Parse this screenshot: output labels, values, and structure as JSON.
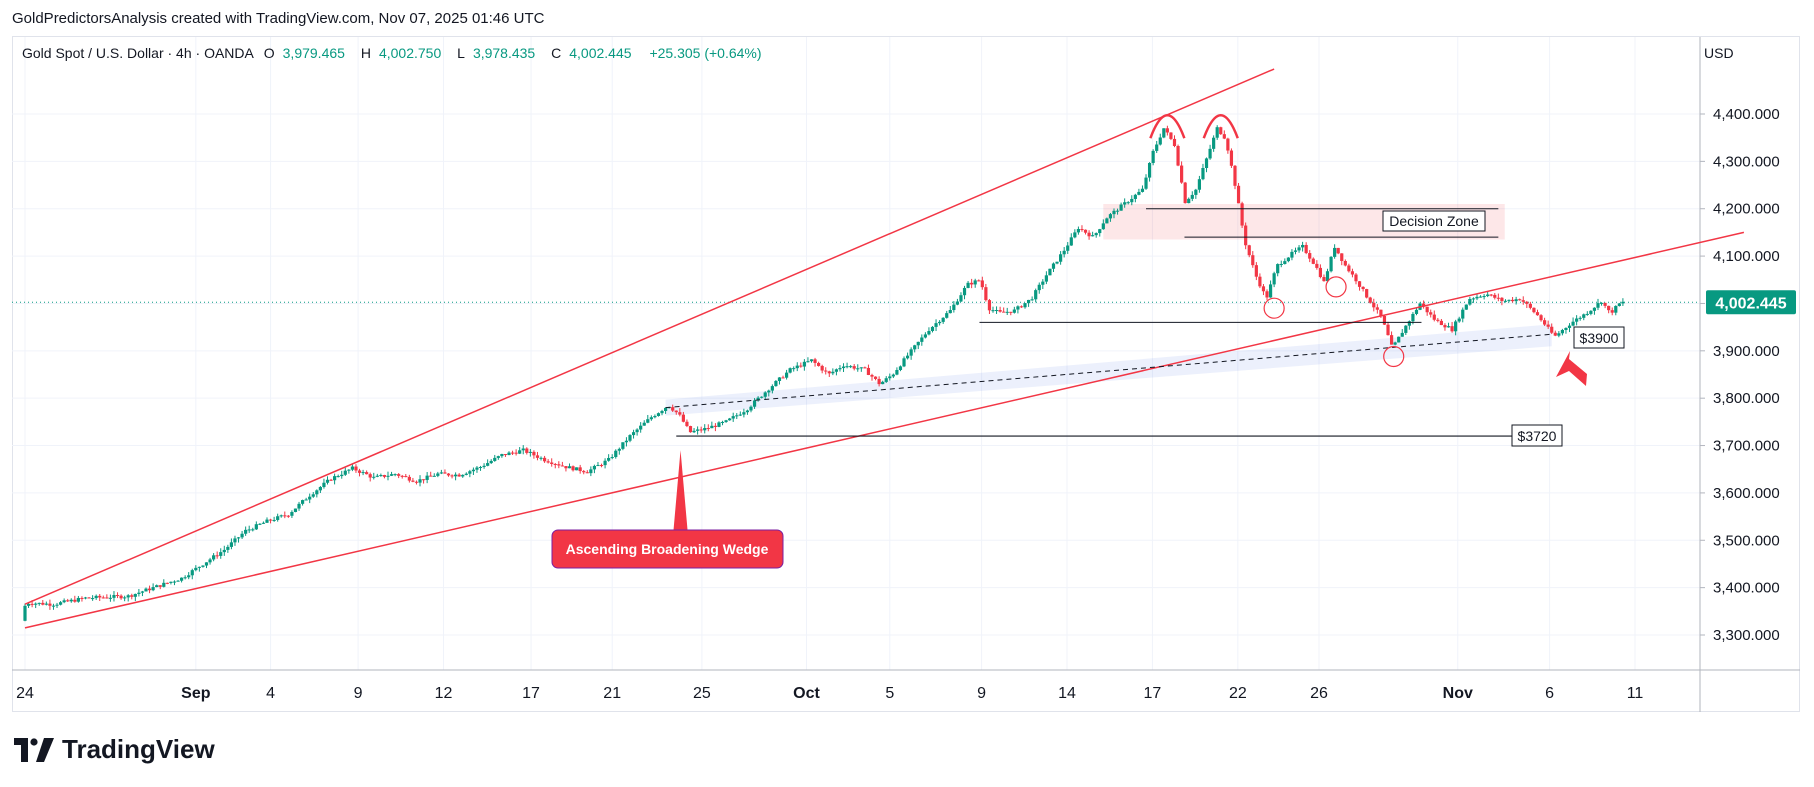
{
  "header": {
    "caption": "GoldPredictorsAnalysis created with TradingView.com, Nov 07, 2025 01:46 UTC"
  },
  "legend": {
    "symbol": "Gold Spot / U.S. Dollar · 4h · OANDA",
    "open_label": "O",
    "open": "3,979.465",
    "high_label": "H",
    "high": "4,002.750",
    "low_label": "L",
    "low": "3,978.435",
    "close_label": "C",
    "close": "4,002.445",
    "change": "+25.305 (+0.64%)"
  },
  "currency": "USD",
  "brand": {
    "name": "TradingView"
  },
  "colors": {
    "up": "#089981",
    "down": "#f23645",
    "accent": "#f23645",
    "grid": "#f0f3fa"
  },
  "chart_data": {
    "type": "candlestick",
    "symbol": "XAUUSD",
    "timeframe": "4h",
    "ylim": [
      3230,
      4520
    ],
    "y_ticks": [
      3300,
      3400,
      3500,
      3600,
      3700,
      3800,
      3900,
      4000,
      4100,
      4200,
      4300,
      4400
    ],
    "y_tick_labels": [
      "3,300.000",
      "3,400.000",
      "3,500.000",
      "3,600.000",
      "3,700.000",
      "3,800.000",
      "3,900.000",
      "4,000.000",
      "4,100.000",
      "4,200.000",
      "4,300.000",
      "4,400.000"
    ],
    "x_ticks": [
      {
        "label": "24",
        "bold": false,
        "day": 0
      },
      {
        "label": "Sep",
        "bold": true,
        "day": 8
      },
      {
        "label": "4",
        "bold": false,
        "day": 11.5
      },
      {
        "label": "9",
        "bold": false,
        "day": 15.6
      },
      {
        "label": "12",
        "bold": false,
        "day": 19.6
      },
      {
        "label": "17",
        "bold": false,
        "day": 23.7
      },
      {
        "label": "21",
        "bold": false,
        "day": 27.5
      },
      {
        "label": "25",
        "bold": false,
        "day": 31.7
      },
      {
        "label": "Oct",
        "bold": true,
        "day": 36.6
      },
      {
        "label": "5",
        "bold": false,
        "day": 40.5
      },
      {
        "label": "9",
        "bold": false,
        "day": 44.8
      },
      {
        "label": "14",
        "bold": false,
        "day": 48.8
      },
      {
        "label": "17",
        "bold": false,
        "day": 52.8
      },
      {
        "label": "22",
        "bold": false,
        "day": 56.8
      },
      {
        "label": "26",
        "bold": false,
        "day": 60.6
      },
      {
        "label": "Nov",
        "bold": true,
        "day": 67.1
      },
      {
        "label": "6",
        "bold": false,
        "day": 71.4
      },
      {
        "label": "11",
        "bold": false,
        "day": 75.4
      }
    ],
    "price_path": [
      [
        0,
        3330
      ],
      [
        0.2,
        3368
      ],
      [
        1.5,
        3365
      ],
      [
        3,
        3378
      ],
      [
        5,
        3382
      ],
      [
        6.5,
        3405
      ],
      [
        7.5,
        3420
      ],
      [
        8.5,
        3450
      ],
      [
        9.5,
        3480
      ],
      [
        10.5,
        3520
      ],
      [
        11.5,
        3540
      ],
      [
        12.5,
        3555
      ],
      [
        13.5,
        3595
      ],
      [
        14.5,
        3630
      ],
      [
        15.5,
        3652
      ],
      [
        16.5,
        3632
      ],
      [
        17.5,
        3640
      ],
      [
        18.5,
        3625
      ],
      [
        19.5,
        3640
      ],
      [
        20.5,
        3638
      ],
      [
        21.5,
        3655
      ],
      [
        22.5,
        3680
      ],
      [
        23.5,
        3690
      ],
      [
        24.5,
        3670
      ],
      [
        25.5,
        3655
      ],
      [
        26.5,
        3645
      ],
      [
        27.5,
        3670
      ],
      [
        28.5,
        3720
      ],
      [
        29.5,
        3760
      ],
      [
        30.3,
        3785
      ],
      [
        30.8,
        3765
      ],
      [
        31.3,
        3728
      ],
      [
        32,
        3735
      ],
      [
        33,
        3750
      ],
      [
        34,
        3778
      ],
      [
        35,
        3820
      ],
      [
        36,
        3860
      ],
      [
        37,
        3880
      ],
      [
        37.8,
        3850
      ],
      [
        38.5,
        3870
      ],
      [
        39.5,
        3860
      ],
      [
        40.2,
        3830
      ],
      [
        40.8,
        3850
      ],
      [
        41.5,
        3890
      ],
      [
        42.5,
        3945
      ],
      [
        43.5,
        3985
      ],
      [
        44.3,
        4040
      ],
      [
        44.9,
        4050
      ],
      [
        45.3,
        3990
      ],
      [
        45.8,
        3980
      ],
      [
        46.5,
        3985
      ],
      [
        47.3,
        4010
      ],
      [
        48,
        4060
      ],
      [
        48.8,
        4110
      ],
      [
        49.5,
        4160
      ],
      [
        50.2,
        4140
      ],
      [
        50.8,
        4180
      ],
      [
        51.5,
        4205
      ],
      [
        52.5,
        4240
      ],
      [
        53,
        4320
      ],
      [
        53.5,
        4370
      ],
      [
        54,
        4335
      ],
      [
        54.5,
        4215
      ],
      [
        55,
        4240
      ],
      [
        55.5,
        4305
      ],
      [
        56,
        4370
      ],
      [
        56.4,
        4348
      ],
      [
        56.8,
        4260
      ],
      [
        57.3,
        4130
      ],
      [
        57.8,
        4060
      ],
      [
        58.3,
        4010
      ],
      [
        58.8,
        4080
      ],
      [
        59.5,
        4105
      ],
      [
        60,
        4120
      ],
      [
        60.6,
        4080
      ],
      [
        61,
        4045
      ],
      [
        61.5,
        4120
      ],
      [
        62,
        4080
      ],
      [
        62.5,
        4050
      ],
      [
        63,
        4015
      ],
      [
        63.7,
        3970
      ],
      [
        64.2,
        3905
      ],
      [
        64.8,
        3950
      ],
      [
        65.5,
        4000
      ],
      [
        66.2,
        3965
      ],
      [
        67,
        3945
      ],
      [
        67.8,
        4010
      ],
      [
        68.6,
        4020
      ],
      [
        69.4,
        4005
      ],
      [
        70.2,
        4010
      ],
      [
        71,
        3975
      ],
      [
        71.8,
        3930
      ],
      [
        72.6,
        3960
      ],
      [
        73.3,
        3980
      ],
      [
        74,
        4005
      ],
      [
        74.4,
        3979
      ],
      [
        74.9,
        4002
      ]
    ],
    "current_price": 4002.445,
    "current_price_label": "4,002.445",
    "annotations": {
      "pattern_label": "Ascending Broadening Wedge",
      "decision_zone_label": "Decision Zone",
      "level_3900_label": "$3900",
      "level_3720_label": "$3720"
    },
    "lines": {
      "wedge_upper": [
        [
          0,
          3365
        ],
        [
          58.5,
          4495
        ]
      ],
      "wedge_lower": [
        [
          0,
          3315
        ],
        [
          80.5,
          4150
        ]
      ],
      "level_3720": [
        [
          30.5,
          3720
        ],
        [
          70.8,
          3720
        ]
      ],
      "level_3960": [
        [
          44.7,
          3960
        ],
        [
          65.4,
          3960
        ]
      ],
      "decision_zone": [
        [
          50.5,
          4135
        ],
        [
          69.3,
          4210
        ]
      ],
      "dz_line_top": [
        [
          52.5,
          4200
        ],
        [
          69,
          4200
        ]
      ],
      "dz_line_bottom": [
        [
          54.3,
          4140
        ],
        [
          69,
          4140
        ]
      ],
      "support_dashed": [
        [
          30,
          3780
        ],
        [
          71.5,
          3935
        ]
      ]
    }
  }
}
